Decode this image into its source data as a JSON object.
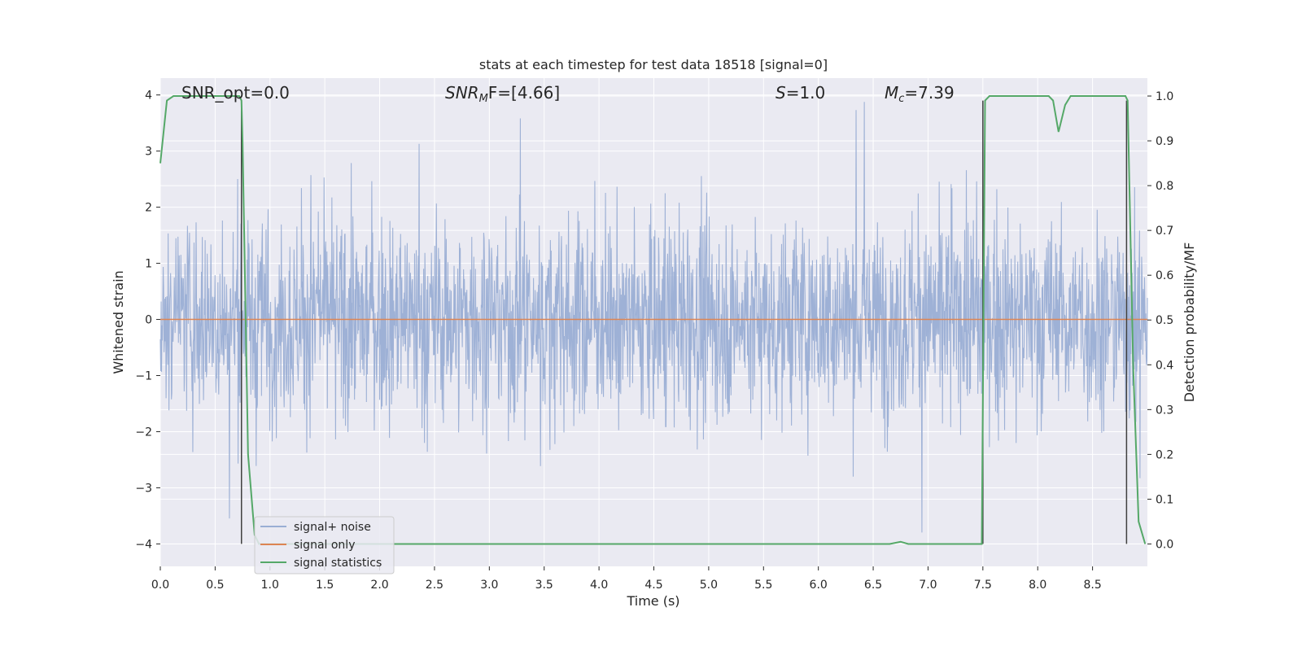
{
  "chart_data": {
    "type": "line",
    "title": "stats at each timestep for test data 18518 [signal=0]",
    "xlabel": "Time (s)",
    "ylabel": "Whitened strain",
    "y2label": "Detection probability/MF",
    "xlim": [
      0.0,
      9.0
    ],
    "ylim": [
      -4.4,
      4.3
    ],
    "y2lim": [
      -0.05,
      1.04
    ],
    "x_ticks": [
      "0.0",
      "0.5",
      "1.0",
      "1.5",
      "2.0",
      "2.5",
      "3.0",
      "3.5",
      "4.0",
      "4.5",
      "5.0",
      "5.5",
      "6.0",
      "6.5",
      "7.0",
      "7.5",
      "8.0",
      "8.5"
    ],
    "y_ticks": [
      "4",
      "3",
      "2",
      "1",
      "0",
      "−1",
      "−2",
      "−3",
      "−4"
    ],
    "y2_ticks": [
      "1.0",
      "0.9",
      "0.8",
      "0.7",
      "0.6",
      "0.5",
      "0.4",
      "0.3",
      "0.2",
      "0.1",
      "0.0"
    ],
    "annotations": {
      "snr_opt": "SNR_opt=0.0",
      "snr_mf_main": "SNR",
      "snr_mf_sub": "M",
      "snr_mf_rest": "F=[4.66]",
      "s_main": "S",
      "s_rest": "=1.0",
      "mc_main": "M",
      "mc_sub": "c",
      "mc_rest": "=7.39"
    },
    "legend": {
      "placement": "lower-left",
      "entries": [
        "signal+ noise",
        "signal only",
        "signal statistics"
      ]
    },
    "colors": {
      "noise": "#9aaed4",
      "signal_only": "#dd8452",
      "statistics": "#55a868",
      "vlines": "#404040",
      "background": "#eaeaf2"
    },
    "series": [
      {
        "name": "signal+ noise",
        "description_range": [
          -4.0,
          3.9
        ],
        "typical_band": [
          -1.6,
          1.6
        ]
      },
      {
        "name": "signal only",
        "x": [
          0.0,
          9.0
        ],
        "y": [
          0.0,
          0.0
        ]
      },
      {
        "name": "signal statistics",
        "x": [
          0.0,
          0.06,
          0.12,
          0.2,
          0.3,
          0.45,
          0.6,
          0.72,
          0.74,
          0.75,
          0.8,
          0.86,
          0.9,
          1.0,
          2.0,
          3.0,
          4.0,
          5.0,
          6.0,
          6.5,
          6.65,
          6.75,
          6.82,
          7.0,
          7.49,
          7.52,
          7.56,
          7.62,
          7.7,
          8.0,
          8.1,
          8.14,
          8.19,
          8.25,
          8.3,
          8.4,
          8.6,
          8.8,
          8.82,
          8.87,
          8.92,
          8.98
        ],
        "y": [
          0.85,
          0.99,
          1.0,
          1.0,
          1.0,
          1.0,
          1.0,
          1.0,
          0.99,
          0.9,
          0.2,
          0.02,
          0.0,
          0.0,
          0.0,
          0.0,
          0.0,
          0.0,
          0.0,
          0.0,
          0.0,
          0.005,
          0.0,
          0.0,
          0.0,
          0.99,
          1.0,
          1.0,
          1.0,
          1.0,
          1.0,
          0.99,
          0.92,
          0.98,
          1.0,
          1.0,
          1.0,
          1.0,
          0.99,
          0.4,
          0.05,
          0.0
        ]
      }
    ],
    "vlines": [
      {
        "x": 0.74,
        "y": [
          -4.0,
          3.9
        ]
      },
      {
        "x": 7.5,
        "y": [
          -4.0,
          3.9
        ]
      },
      {
        "x": 8.81,
        "y": [
          -4.0,
          3.9
        ]
      }
    ]
  }
}
